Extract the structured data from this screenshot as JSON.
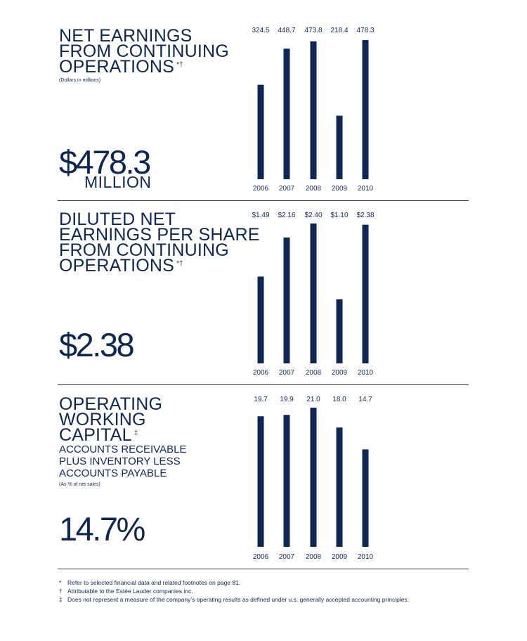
{
  "panels": [
    {
      "title_lines": [
        "NET EARNINGS",
        "FROM CONTINUING",
        "OPERATIONS"
      ],
      "title_sup": "*†",
      "subtitle_lines": [],
      "note": "(Dollars in millions)",
      "big_value": "$478.3",
      "big_unit": "MILLION"
    },
    {
      "title_lines": [
        "DILUTED NET",
        "EARNINGS PER SHARE",
        "FROM CONTINUING",
        "OPERATIONS"
      ],
      "title_sup": "*†",
      "subtitle_lines": [],
      "note": "",
      "big_value": "$2.38",
      "big_unit": ""
    },
    {
      "title_lines": [
        "OPERATING",
        "WORKING",
        "CAPITAL"
      ],
      "title_sup": "‡",
      "subtitle_lines": [
        "ACCOUNTS RECEIVABLE",
        "PLUS INVENTORY LESS",
        "ACCOUNTS PAYABLE"
      ],
      "note": "(As % of net sales)",
      "big_value": "14.7%",
      "big_unit": ""
    }
  ],
  "chart_data": [
    {
      "type": "bar",
      "categories": [
        "2006",
        "2007",
        "2008",
        "2009",
        "2010"
      ],
      "values": [
        324.5,
        448.7,
        473.8,
        218.4,
        478.3
      ],
      "value_labels": [
        "324.5",
        "448.7",
        "473.8",
        "218.4",
        "478.3"
      ],
      "title": "NET EARNINGS FROM CONTINUING OPERATIONS",
      "ylim": [
        0,
        478.3
      ],
      "color": "#0d2754"
    },
    {
      "type": "bar",
      "categories": [
        "2006",
        "2007",
        "2008",
        "2009",
        "2010"
      ],
      "values": [
        1.49,
        2.16,
        2.4,
        1.1,
        2.38
      ],
      "value_labels": [
        "$1.49",
        "$2.16",
        "$2.40",
        "$1.10",
        "$2.38"
      ],
      "title": "DILUTED NET EARNINGS PER SHARE FROM CONTINUING OPERATIONS",
      "ylim": [
        0,
        2.4
      ],
      "color": "#0d2754"
    },
    {
      "type": "bar",
      "categories": [
        "2006",
        "2007",
        "2008",
        "2009",
        "2010"
      ],
      "values": [
        19.7,
        19.9,
        21.0,
        18.0,
        14.7
      ],
      "value_labels": [
        "19.7",
        "19.9",
        "21.0",
        "18.0",
        "14.7"
      ],
      "title": "OPERATING WORKING CAPITAL",
      "ylim": [
        0,
        21.0
      ],
      "color": "#0d2754"
    }
  ],
  "footnotes": [
    {
      "mark": "*",
      "text": "Refer to selected financial data and related footnotes on page 81."
    },
    {
      "mark": "†",
      "text": "Attributable to the Estée Lauder companies inc."
    },
    {
      "mark": "‡",
      "text": "Does not represent a measure of the company’s operating results as defined under u.s. generally accepted accounting principles."
    }
  ]
}
